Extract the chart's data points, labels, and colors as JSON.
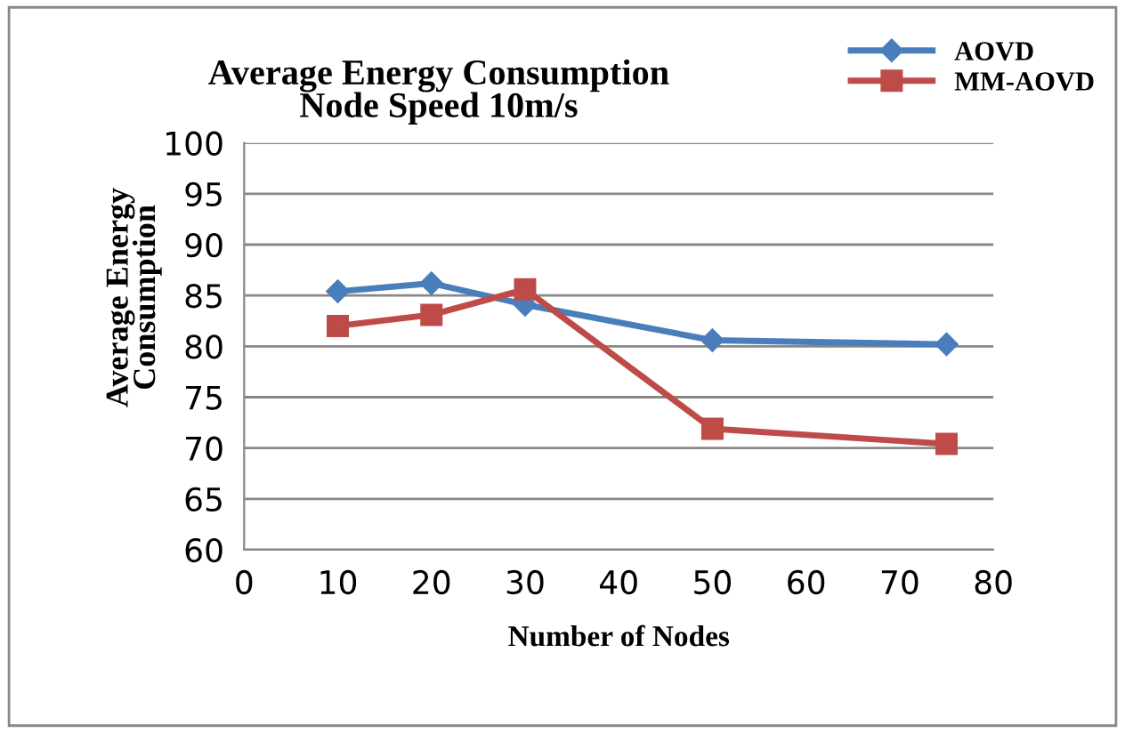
{
  "chart_data": {
    "type": "line",
    "title": "Average Energy Consumption\nNode Speed 10m/s",
    "xlabel": "Number of Nodes",
    "ylabel": "Average Energy\nConsumption",
    "x": [
      10,
      20,
      30,
      50,
      75
    ],
    "series": [
      {
        "name": "AOVD",
        "color": "#4a7ebb",
        "marker": "diamond",
        "values": [
          85.4,
          86.2,
          84.1,
          80.6,
          80.2
        ]
      },
      {
        "name": "MM-AOVD",
        "color": "#be4b48",
        "marker": "square",
        "values": [
          82.0,
          83.1,
          85.6,
          71.9,
          70.4
        ]
      }
    ],
    "xlim": [
      0,
      80
    ],
    "xticks": [
      0,
      10,
      20,
      30,
      40,
      50,
      60,
      70,
      80
    ],
    "ylim": [
      60,
      100
    ],
    "yticks": [
      60,
      65,
      70,
      75,
      80,
      85,
      90,
      95,
      100
    ],
    "grid": "y",
    "legend": "top right",
    "line_style": "solid"
  }
}
